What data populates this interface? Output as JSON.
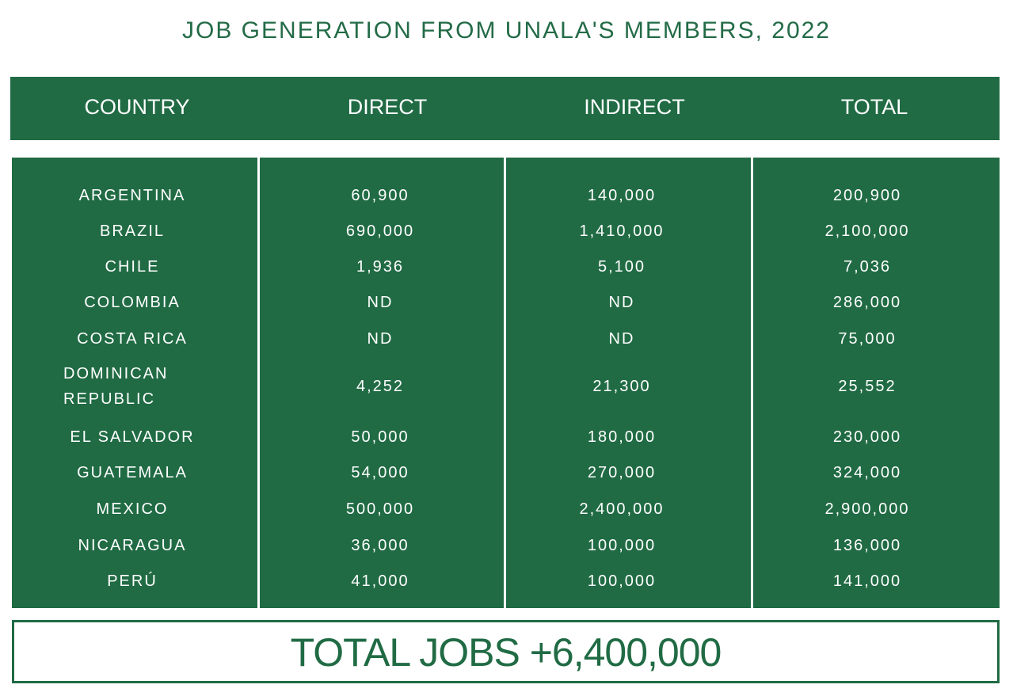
{
  "title": "JOB GENERATION FROM UNALA'S MEMBERS, 2022",
  "table": {
    "header": [
      "COUNTRY",
      "DIRECT",
      "INDIRECT",
      "TOTAL"
    ],
    "rows": [
      [
        "ARGENTINA",
        "60,900",
        "140,000",
        "200,900"
      ],
      [
        "BRAZIL",
        "690,000",
        "1,410,000",
        "2,100,000"
      ],
      [
        "CHILE",
        "1,936",
        "5,100",
        "7,036"
      ],
      [
        "COLOMBIA",
        "ND",
        "ND",
        "286,000"
      ],
      [
        "COSTA RICA",
        "ND",
        "ND",
        "75,000"
      ],
      [
        "DOMINICAN REPUBLIC",
        "4,252",
        "21,300",
        "25,552"
      ],
      [
        "EL SALVADOR",
        "50,000",
        "180,000",
        "230,000"
      ],
      [
        "GUATEMALA",
        "54,000",
        "270,000",
        "324,000"
      ],
      [
        "MEXICO",
        "500,000",
        "2,400,000",
        "2,900,000"
      ],
      [
        "NICARAGUA",
        "36,000",
        "100,000",
        "136,000"
      ],
      [
        "PERÚ",
        "41,000",
        "100,000",
        "141,000"
      ]
    ]
  },
  "footer": "TOTAL JOBS +6,400,000"
}
